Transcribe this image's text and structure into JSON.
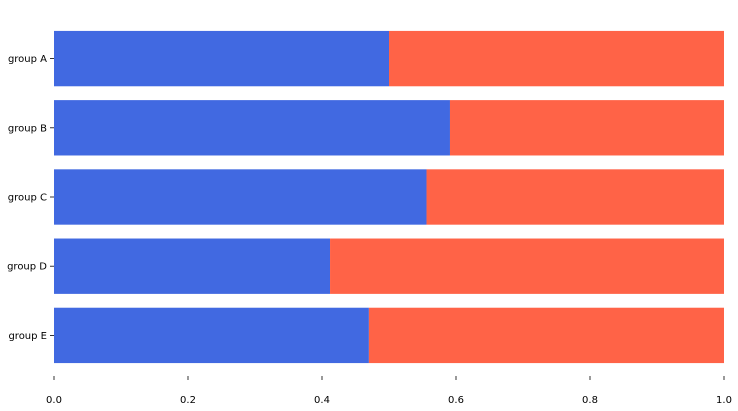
{
  "chart_data": {
    "type": "bar",
    "orientation": "horizontal",
    "stacked": true,
    "categories": [
      "group A",
      "group B",
      "group C",
      "group D",
      "group E"
    ],
    "series": [
      {
        "values": [
          0.5,
          0.591,
          0.556,
          0.412,
          0.47
        ],
        "color": "#4169E1"
      },
      {
        "values": [
          0.5,
          0.409,
          0.444,
          0.588,
          0.53
        ],
        "color": "#FF6347"
      }
    ],
    "xlim": [
      0,
      1
    ],
    "x_ticks": [
      "0.0",
      "0.2",
      "0.4",
      "0.6",
      "0.8",
      "1.0"
    ],
    "grid": false,
    "frame": false
  }
}
